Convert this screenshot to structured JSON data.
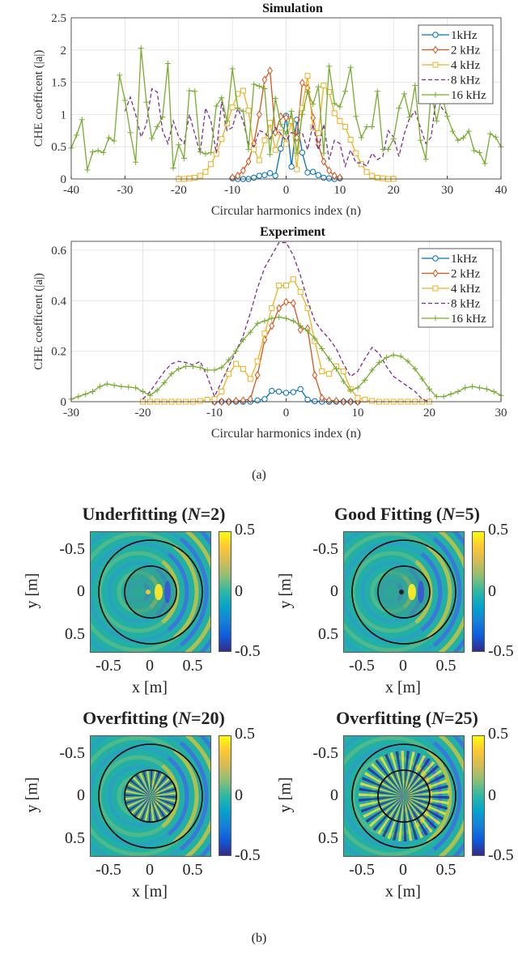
{
  "chart_data": [
    {
      "type": "line",
      "title": "Simulation",
      "xlabel": "Circular harmonics index (n)",
      "ylabel": "CHE coefficent (|a|)",
      "xlim": [
        -40,
        40
      ],
      "ylim": [
        0,
        2.5
      ],
      "xticks": [
        -40,
        -30,
        -20,
        -10,
        0,
        10,
        20,
        30,
        40
      ],
      "yticks": [
        0,
        0.5,
        1,
        1.5,
        2,
        2.5
      ],
      "ytick_labels": [
        "0",
        "0.5",
        "1",
        "1.5",
        "2",
        "2.5"
      ],
      "grid": true,
      "legend_position": "top-right",
      "series": [
        {
          "name": "1kHz",
          "color": "#0072BD",
          "marker": "circle",
          "style": "solid",
          "x_start": -10,
          "values": [
            0.01,
            0,
            0,
            0,
            0.02,
            0.05,
            0.06,
            0.09,
            0.05,
            0.47,
            0.98,
            0.19,
            0.92,
            0.41,
            0.1,
            0.11,
            0.06,
            0.02,
            0.01,
            0,
            0.01
          ]
        },
        {
          "name": "2 kHz",
          "color": "#D95319",
          "marker": "diamond",
          "style": "solid",
          "x_start": -10,
          "values": [
            0.02,
            0.05,
            0.13,
            0.27,
            0.55,
            1.0,
            1.54,
            1.68,
            0.72,
            0.97,
            0.95,
            0.92,
            0.64,
            1.49,
            1.41,
            0.95,
            0.53,
            0.27,
            0.13,
            0.05,
            0.02
          ]
        },
        {
          "name": "4 kHz",
          "color": "#EDB120",
          "marker": "square",
          "style": "solid",
          "x_start": -20,
          "values": [
            0,
            0,
            0.01,
            0.02,
            0.05,
            0.11,
            0.23,
            0.39,
            0.62,
            0.86,
            1.11,
            1.32,
            1.37,
            1.06,
            0.46,
            0.29,
            0.6,
            0.87,
            0.45,
            0.72,
            0.54,
            0.9,
            0.15,
            1.1,
            1.6,
            0.8,
            0.71,
            1.45,
            1.35,
            1.02,
            0.9,
            0.81,
            0.61,
            0.4,
            0.23,
            0.11,
            0.05,
            0.02,
            0.01,
            0,
            0
          ]
        },
        {
          "name": "8 kHz",
          "color": "#7E2F8E",
          "marker": "none",
          "style": "dashed",
          "x_start": -30,
          "values": [
            1.05,
            1.27,
            1.0,
            0.65,
            0.85,
            1.4,
            1.35,
            0.75,
            0.55,
            0.9,
            0.65,
            0.55,
            1.0,
            0.7,
            0.4,
            1.1,
            0.9,
            0.4,
            1.2,
            0.75,
            0.8,
            1.1,
            0.9,
            0.55,
            0.5,
            0.75,
            0.72,
            0.62,
            0.8,
            0.7,
            0.6,
            0.72,
            0.7,
            0.72,
            0.45,
            0.85,
            0.45,
            0.85,
            0.3,
            0.6,
            0.55,
            0.2,
            0.45,
            0.25,
            0.25,
            0.2,
            0.4,
            0.3,
            0.35,
            0.75,
            0.65,
            0.35,
            0.7,
            0.95,
            1.05,
            0.8,
            0.55,
            0.65,
            1.3,
            1.1,
            1.0
          ]
        },
        {
          "name": "16 kHz",
          "color": "#77AC30",
          "marker": "plus",
          "style": "solid",
          "x_start": -40,
          "values": [
            0.48,
            0.68,
            0.92,
            0.14,
            0.42,
            0.44,
            0.41,
            0.64,
            0.59,
            1.61,
            1.22,
            0.72,
            0.26,
            2.03,
            1.19,
            0.63,
            0.81,
            0.96,
            1.79,
            0.17,
            0.53,
            0.32,
            1.37,
            1.36,
            0.42,
            0.39,
            0.41,
            1.13,
            1.26,
            0.9,
            1.71,
            1.1,
            1.05,
            0.46,
            1.47,
            1.44,
            1.4,
            0.38,
            1.25,
            0.85,
            0.7,
            1.05,
            0.4,
            1.0,
            1.35,
            1.16,
            1.43,
            0.4,
            1.75,
            1.17,
            1.12,
            1.36,
            1.73,
            0.97,
            0.64,
            0.81,
            0.81,
            1.36,
            0.46,
            0.46,
            0.62,
            1.1,
            1.32,
            0.96,
            1.45,
            0.6,
            0.31,
            1.35,
            0.9,
            1.3,
            0.97,
            0.74,
            0.6,
            0.64,
            0.74,
            0.44,
            0.41,
            0.24,
            0.7,
            0.65,
            0.5
          ]
        }
      ]
    },
    {
      "type": "line",
      "title": "Experiment",
      "xlabel": "Circular harmonics index (n)",
      "ylabel": "CHE coefficent (|a|)",
      "xlim": [
        -30,
        30
      ],
      "ylim": [
        0,
        0.635
      ],
      "xticks": [
        -30,
        -20,
        -10,
        0,
        10,
        20,
        30
      ],
      "yticks": [
        0,
        0.2,
        0.4,
        0.6
      ],
      "ytick_labels": [
        "0",
        "0.2",
        "0.4",
        "0.6"
      ],
      "grid": true,
      "legend_position": "top-right",
      "series": [
        {
          "name": "1kHz",
          "color": "#0072BD",
          "marker": "circle",
          "style": "solid",
          "x_start": -10,
          "values": [
            0,
            0,
            0,
            0,
            0,
            0,
            0.005,
            0.01,
            0.043,
            0.04,
            0.035,
            0.038,
            0.05,
            0.008,
            0.002,
            0,
            0,
            0,
            0,
            0,
            0
          ]
        },
        {
          "name": "2 kHz",
          "color": "#D95319",
          "marker": "diamond",
          "style": "solid",
          "x_start": -10,
          "values": [
            0,
            0,
            0,
            0.003,
            0.005,
            0.01,
            0.105,
            0.245,
            0.3,
            0.37,
            0.395,
            0.39,
            0.285,
            0.29,
            0.105,
            0.015,
            0.005,
            0.003,
            0,
            0,
            0
          ]
        },
        {
          "name": "4 kHz",
          "color": "#EDB120",
          "marker": "square",
          "style": "solid",
          "x_start": -20,
          "values": [
            0,
            0,
            0,
            0,
            0,
            0,
            0,
            0,
            0.003,
            0.008,
            0.01,
            0.04,
            0.11,
            0.15,
            0.13,
            0.09,
            0.16,
            0.27,
            0.37,
            0.46,
            0.46,
            0.485,
            0.435,
            0.37,
            0.24,
            0.12,
            0.11,
            0.14,
            0.12,
            0.05,
            0.015,
            0.008,
            0.003,
            0,
            0,
            0,
            0,
            0,
            0,
            0,
            0
          ]
        },
        {
          "name": "8 kHz",
          "color": "#7E2F8E",
          "marker": "none",
          "style": "dashed",
          "x_start": -20,
          "values": [
            0.01,
            0.04,
            0.08,
            0.12,
            0.15,
            0.16,
            0.155,
            0.145,
            0.16,
            0.1,
            0.02,
            0.08,
            0.14,
            0.2,
            0.26,
            0.35,
            0.45,
            0.53,
            0.58,
            0.63,
            0.63,
            0.58,
            0.5,
            0.4,
            0.32,
            0.28,
            0.25,
            0.21,
            0.15,
            0.1,
            0.12,
            0.17,
            0.215,
            0.19,
            0.14,
            0.1,
            0.08,
            0.06,
            0.04,
            0.01,
            0
          ]
        },
        {
          "name": "16 kHz",
          "color": "#77AC30",
          "marker": "plus",
          "style": "solid",
          "x_start": -30,
          "values": [
            0.01,
            0.02,
            0.03,
            0.04,
            0.06,
            0.07,
            0.065,
            0.06,
            0.058,
            0.055,
            0.04,
            0.025,
            0.045,
            0.075,
            0.11,
            0.13,
            0.14,
            0.14,
            0.135,
            0.125,
            0.125,
            0.135,
            0.165,
            0.2,
            0.245,
            0.275,
            0.31,
            0.32,
            0.33,
            0.335,
            0.33,
            0.32,
            0.3,
            0.28,
            0.25,
            0.21,
            0.17,
            0.13,
            0.08,
            0.045,
            0.055,
            0.085,
            0.125,
            0.155,
            0.175,
            0.185,
            0.18,
            0.16,
            0.13,
            0.09,
            0.05,
            0.02,
            0.02,
            0.03,
            0.04,
            0.055,
            0.06,
            0.055,
            0.05,
            0.04,
            0.025
          ]
        }
      ]
    }
  ],
  "captions": {
    "a": "(a)",
    "b": "(b)"
  },
  "heatmaps": {
    "xlabel": "x [m]",
    "ylabel": "y [m]",
    "ticks": [
      "-0.5",
      "0",
      "0.5"
    ],
    "colorbar_ticks": [
      "0.5",
      "0",
      "-0.5"
    ],
    "colormap": "parula",
    "panels": [
      {
        "title_prefix": "Underfitting (",
        "n_symbol": "N",
        "title_suffix": "=2)",
        "N": 2
      },
      {
        "title_prefix": "Good Fitting (",
        "n_symbol": "N",
        "title_suffix": "=5)",
        "N": 5
      },
      {
        "title_prefix": "Overfitting (",
        "n_symbol": "N",
        "title_suffix": "=20)",
        "N": 20
      },
      {
        "title_prefix": "Overfitting (",
        "n_symbol": "N",
        "title_suffix": "=25)",
        "N": 25
      }
    ]
  }
}
